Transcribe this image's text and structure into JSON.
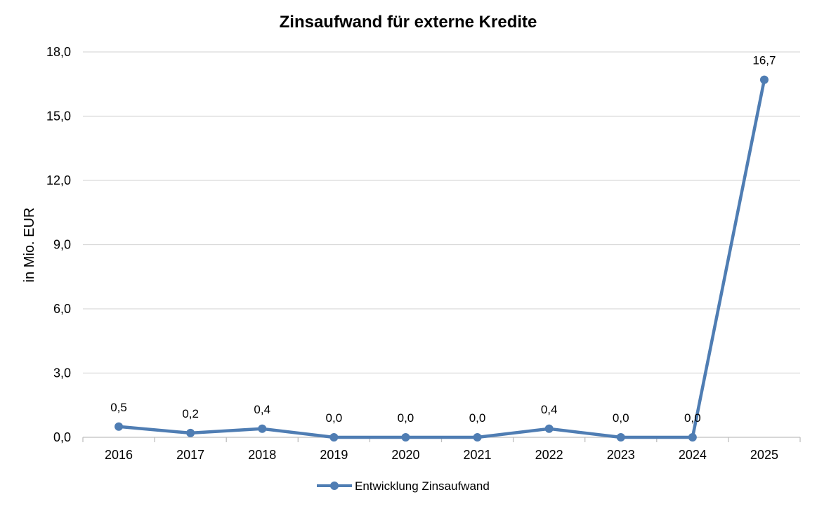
{
  "chart_data": {
    "type": "line",
    "title": "Zinsaufwand für externe Kredite",
    "xlabel": "",
    "ylabel": "in Mio. EUR",
    "categories": [
      "2016",
      "2017",
      "2018",
      "2019",
      "2020",
      "2021",
      "2022",
      "2023",
      "2024",
      "2025"
    ],
    "series": [
      {
        "name": "Entwicklung Zinsaufwand",
        "values": [
          0.5,
          0.2,
          0.4,
          0.0,
          0.0,
          0.0,
          0.4,
          0.0,
          0.0,
          16.7
        ],
        "labels": [
          "0,5",
          "0,2",
          "0,4",
          "0,0",
          "0,0",
          "0,0",
          "0,4",
          "0,0",
          "0,0",
          "16,7"
        ],
        "color": "#4f7db3"
      }
    ],
    "ylim": [
      0,
      18
    ],
    "yticks": [
      0,
      3,
      6,
      9,
      12,
      15,
      18
    ],
    "ytick_labels": [
      "0,0",
      "3,0",
      "6,0",
      "9,0",
      "12,0",
      "15,0",
      "18,0"
    ],
    "grid": true,
    "legend_position": "bottom"
  }
}
